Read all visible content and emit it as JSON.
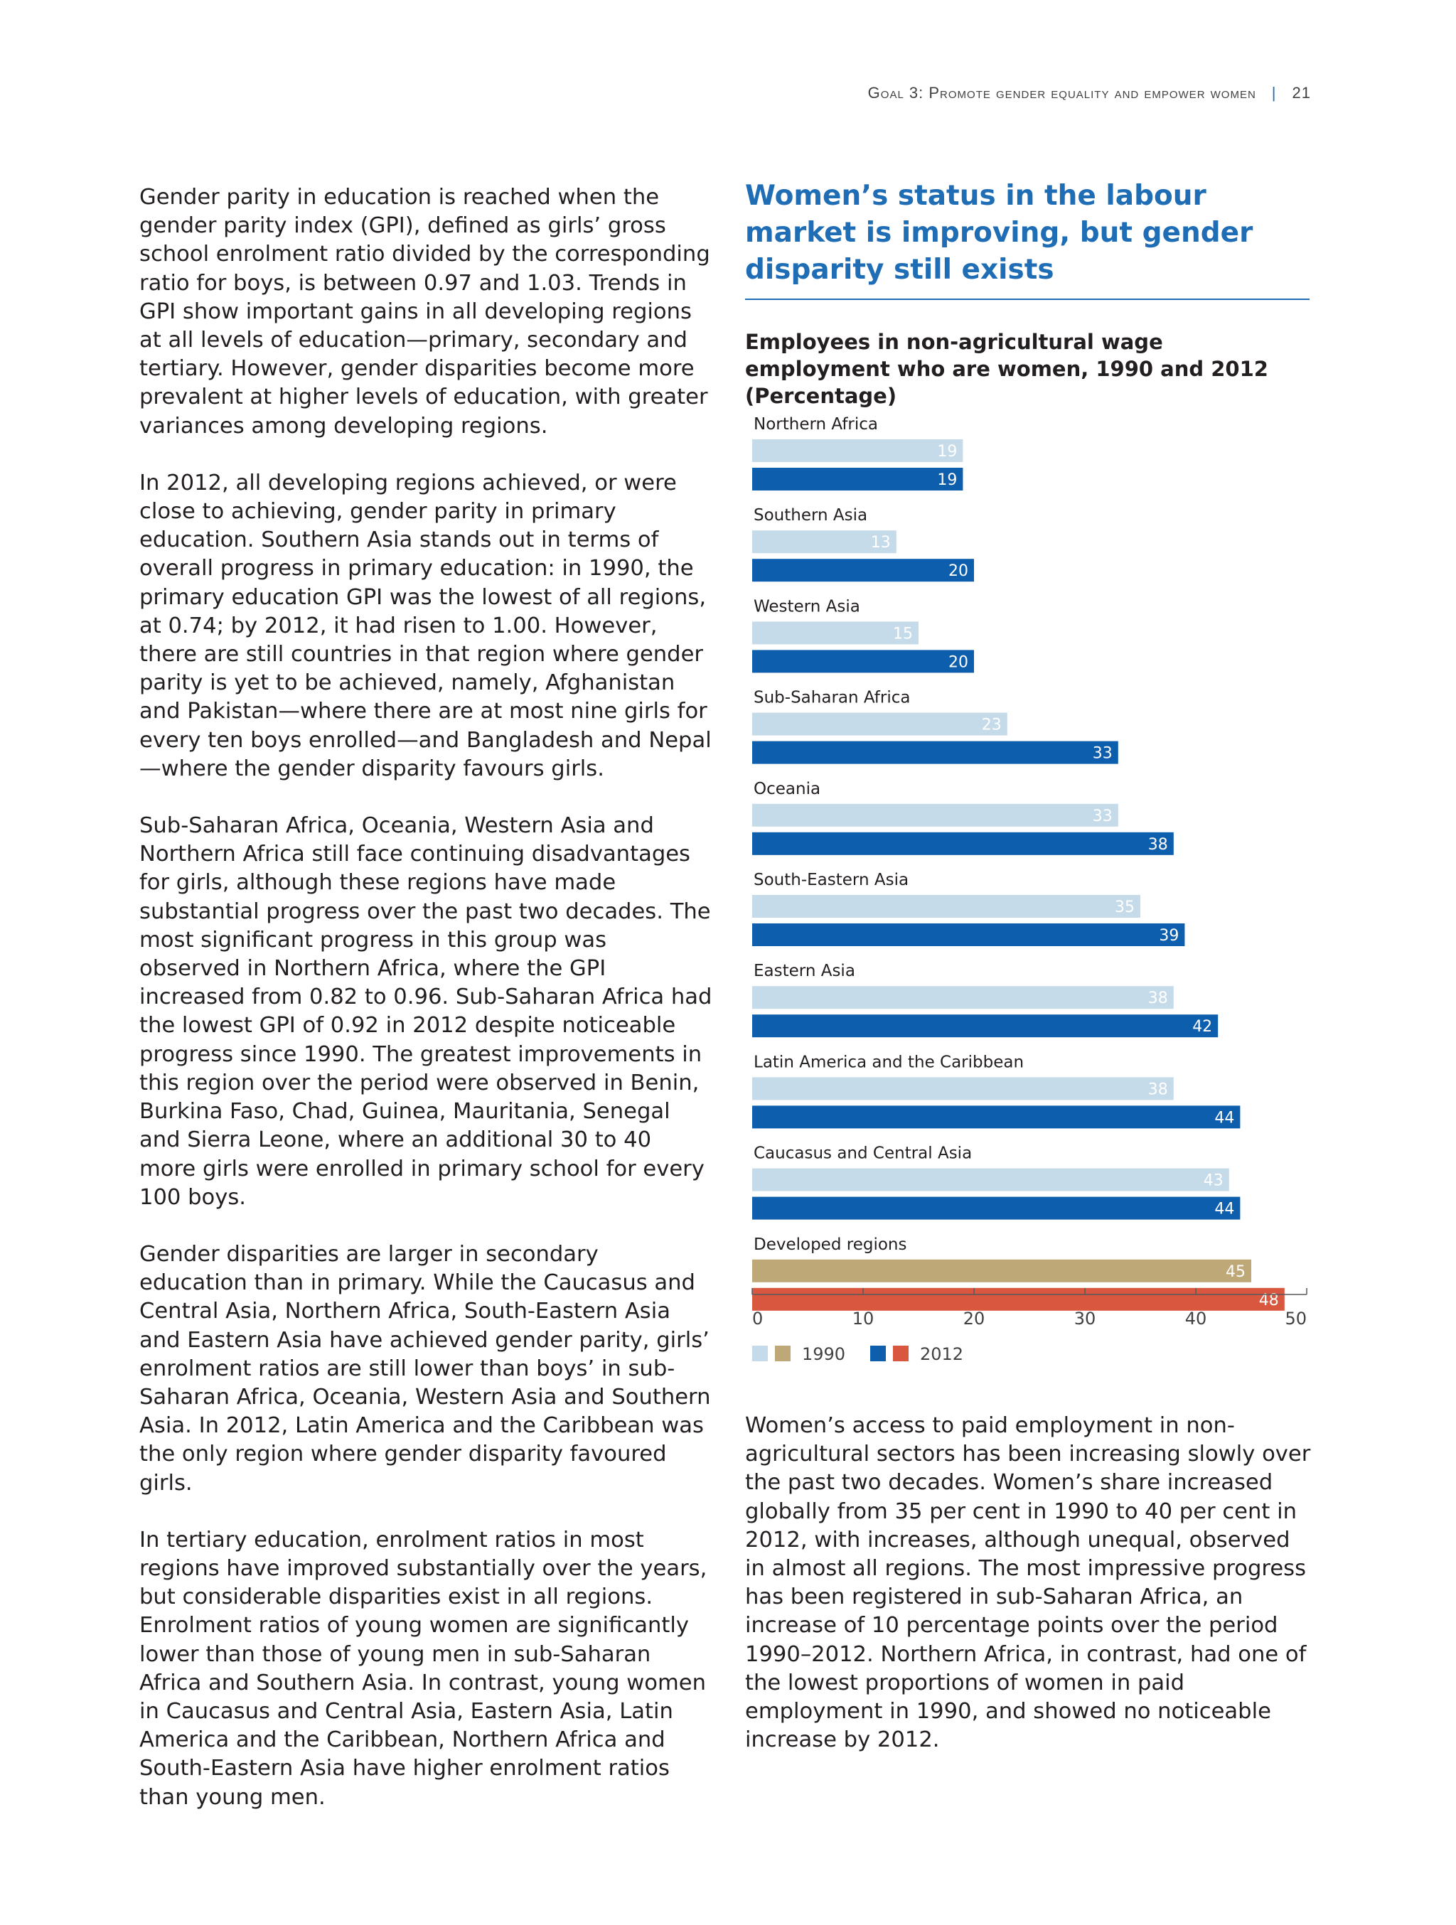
{
  "header": {
    "running_title": "Goal 3: Promote gender equality and empower women",
    "page_number": "21"
  },
  "left_column": {
    "paragraphs": [
      "Gender parity in education is reached when the gender parity index (GPI), defined as girls’ gross school enrolment ratio divided by the corresponding ratio for boys, is between 0.97 and 1.03. Trends in GPI show important gains in all developing regions at all levels of education—primary, secondary and tertiary. However, gender disparities become more prevalent at higher levels of education, with greater variances among developing regions.",
      "In 2012, all developing regions achieved, or were close to achieving, gender parity in primary education. Southern Asia stands out in terms of overall progress in primary education: in 1990, the primary education GPI was the lowest of all regions, at 0.74; by 2012, it had risen to 1.00. However, there are still countries in that region where gender parity is yet to be achieved, namely, Afghanistan and Pakistan—where there are at most nine girls for every ten boys enrolled—and Bangladesh and Nepal—where the gender disparity favours girls.",
      "Sub-Saharan Africa, Oceania, Western Asia and Northern Africa still face continuing disadvantages for girls, although these regions have made substantial progress over the past two decades. The most significant progress in this group was observed in Northern Africa, where the GPI increased from 0.82 to 0.96. Sub-Saharan Africa had the lowest GPI of 0.92 in 2012 despite noticeable progress since 1990. The greatest improvements in this region over the period were observed in Benin, Burkina Faso, Chad, Guinea, Mauritania, Senegal and Sierra Leone, where an additional 30 to 40 more girls were enrolled in primary school for every 100 boys.",
      "Gender disparities are larger in secondary education than in primary. While the Caucasus and Central Asia, Northern Africa, South-Eastern Asia and Eastern Asia have achieved gender parity, girls’ enrolment ratios are still lower than boys’ in sub-Saharan Africa, Oceania, Western Asia and Southern Asia. In 2012, Latin America and the Caribbean was the only region where gender disparity favoured girls.",
      "In tertiary education, enrolment ratios in most regions have improved substantially over the years, but considerable disparities exist in all regions. Enrolment ratios of young women are significantly lower than those of young men in sub-Saharan Africa and Southern Asia. In contrast, young women in Caucasus and Central Asia, Eastern Asia, Latin America and the Caribbean, Northern Africa and South-Eastern Asia have higher enrolment ratios than young men."
    ]
  },
  "right_column": {
    "heading": "Women’s status in the labour market is improving, but gender disparity still exists",
    "chart_title": "Employees in non-agricultural wage employment who are women, 1990 and 2012 (Percentage)",
    "paragraphs": [
      "Women’s access to paid employment in non-agricultural sectors has been increasing slowly over the past two decades. Women’s share increased globally from 35 per cent in 1990 to 40 per cent in 2012, with increases, although unequal, observed in almost all regions. The most impressive progress has been registered in sub-Saharan Africa, an increase of 10 percentage points over the period 1990–2012. Northern Africa, in contrast, had one of the lowest proportions of women in paid employment in 1990, and showed no noticeable increase by 2012."
    ]
  },
  "chart_data": {
    "type": "bar",
    "orientation": "horizontal",
    "title": "Employees in non-agricultural wage employment who are women, 1990 and 2012 (Percentage)",
    "categories": [
      "Northern Africa",
      "Southern Asia",
      "Western Asia",
      "Sub-Saharan Africa",
      "Oceania",
      "South-Eastern Asia",
      "Eastern Asia",
      "Latin America and the Caribbean",
      "Caucasus and Central Asia",
      "Developed regions"
    ],
    "series": [
      {
        "name": "1990",
        "values": [
          19,
          13,
          15,
          23,
          33,
          35,
          38,
          38,
          43,
          45
        ],
        "color": "#c6dbea",
        "developed_color": "#bfa878"
      },
      {
        "name": "2012",
        "values": [
          19,
          20,
          20,
          33,
          38,
          39,
          42,
          44,
          44,
          48
        ],
        "color": "#0d5fae",
        "developed_color": "#d9573f"
      }
    ],
    "x_ticks": [
      0,
      10,
      20,
      30,
      40,
      50
    ],
    "xlim": [
      0,
      50
    ],
    "grid": false,
    "legend_position": "bottom-left"
  }
}
